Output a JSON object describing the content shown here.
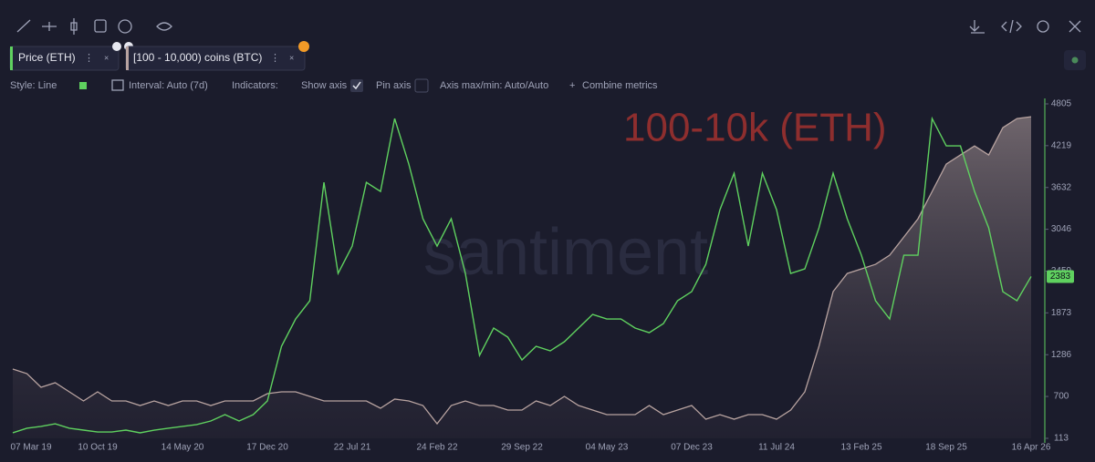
{
  "options": {
    "style": "Style: Line",
    "interval": "Interval: Auto (7d)",
    "indicators": "Indicators:",
    "show_axis": "Show axis",
    "pin_axis": "Pin axis",
    "axis_range": "Axis max/min: Auto/Auto",
    "combine": "Combine metrics"
  },
  "chart_data": {
    "type": "line",
    "annotation": "100-10k (ETH)",
    "watermark": "santiment",
    "categories": [
      "07 Mar 19",
      null,
      null,
      null,
      null,
      null,
      "10 Oct 19",
      null,
      null,
      null,
      null,
      null,
      "14 May 20",
      null,
      null,
      null,
      null,
      null,
      "17 Dec 20",
      null,
      null,
      null,
      null,
      null,
      "22 Jul 21",
      null,
      null,
      null,
      null,
      null,
      "24 Feb 22",
      null,
      null,
      null,
      null,
      null,
      "29 Sep 22",
      null,
      null,
      null,
      null,
      null,
      "04 May 23",
      null,
      null,
      null,
      null,
      null,
      "07 Dec 23",
      null,
      null,
      null,
      null,
      null,
      "11 Jul 24",
      null,
      null,
      null,
      null,
      null,
      "13 Feb 25",
      null,
      null,
      null,
      null,
      null,
      "18 Sep 25",
      null,
      null,
      null,
      null,
      null,
      "16 Apr 26"
    ],
    "series": [
      {
        "name": "Price (ETH)",
        "color": "#5fd15f",
        "values": [
          190,
          254,
          280,
          317,
          254,
          228,
          202,
          202,
          228,
          190,
          228,
          254,
          280,
          305,
          356,
          445,
          356,
          445,
          637,
          1404,
          1787,
          2043,
          3704,
          2426,
          2810,
          3704,
          3576,
          4599,
          3960,
          3193,
          2810,
          3193,
          2426,
          1276,
          1660,
          1532,
          1212,
          1404,
          1340,
          1468,
          1660,
          1851,
          1787,
          1787,
          1660,
          1595,
          1723,
          2043,
          2171,
          2554,
          3321,
          3832,
          2810,
          3832,
          3321,
          2426,
          2490,
          3065,
          3832,
          3193,
          2682,
          2043,
          1787,
          2682,
          2682,
          4599,
          4216,
          4216,
          3576,
          3065,
          2171,
          2043,
          2383
        ]
      },
      {
        "name": "[100 - 10,000) coins (BTC)",
        "color": "#b8a3a0",
        "values": [
          1084,
          1020,
          829,
          893,
          765,
          637,
          765,
          637,
          637,
          573,
          637,
          573,
          637,
          637,
          573,
          637,
          637,
          637,
          739,
          765,
          765,
          701,
          637,
          637,
          637,
          637,
          535,
          663,
          637,
          573,
          317,
          573,
          637,
          573,
          573,
          509,
          509,
          637,
          573,
          701,
          573,
          509,
          445,
          445,
          445,
          573,
          445,
          509,
          573,
          381,
          445,
          381,
          445,
          445,
          381,
          509,
          765,
          1404,
          2171,
          2426,
          2490,
          2554,
          2682,
          2937,
          3193,
          3576,
          3960,
          4088,
          4215,
          4088,
          4471,
          4599,
          4624
        ]
      }
    ],
    "ylim": [
      113,
      4805
    ],
    "yticks": [
      113,
      700,
      1286,
      1873,
      2459,
      3046,
      3632,
      4219,
      4805
    ]
  }
}
